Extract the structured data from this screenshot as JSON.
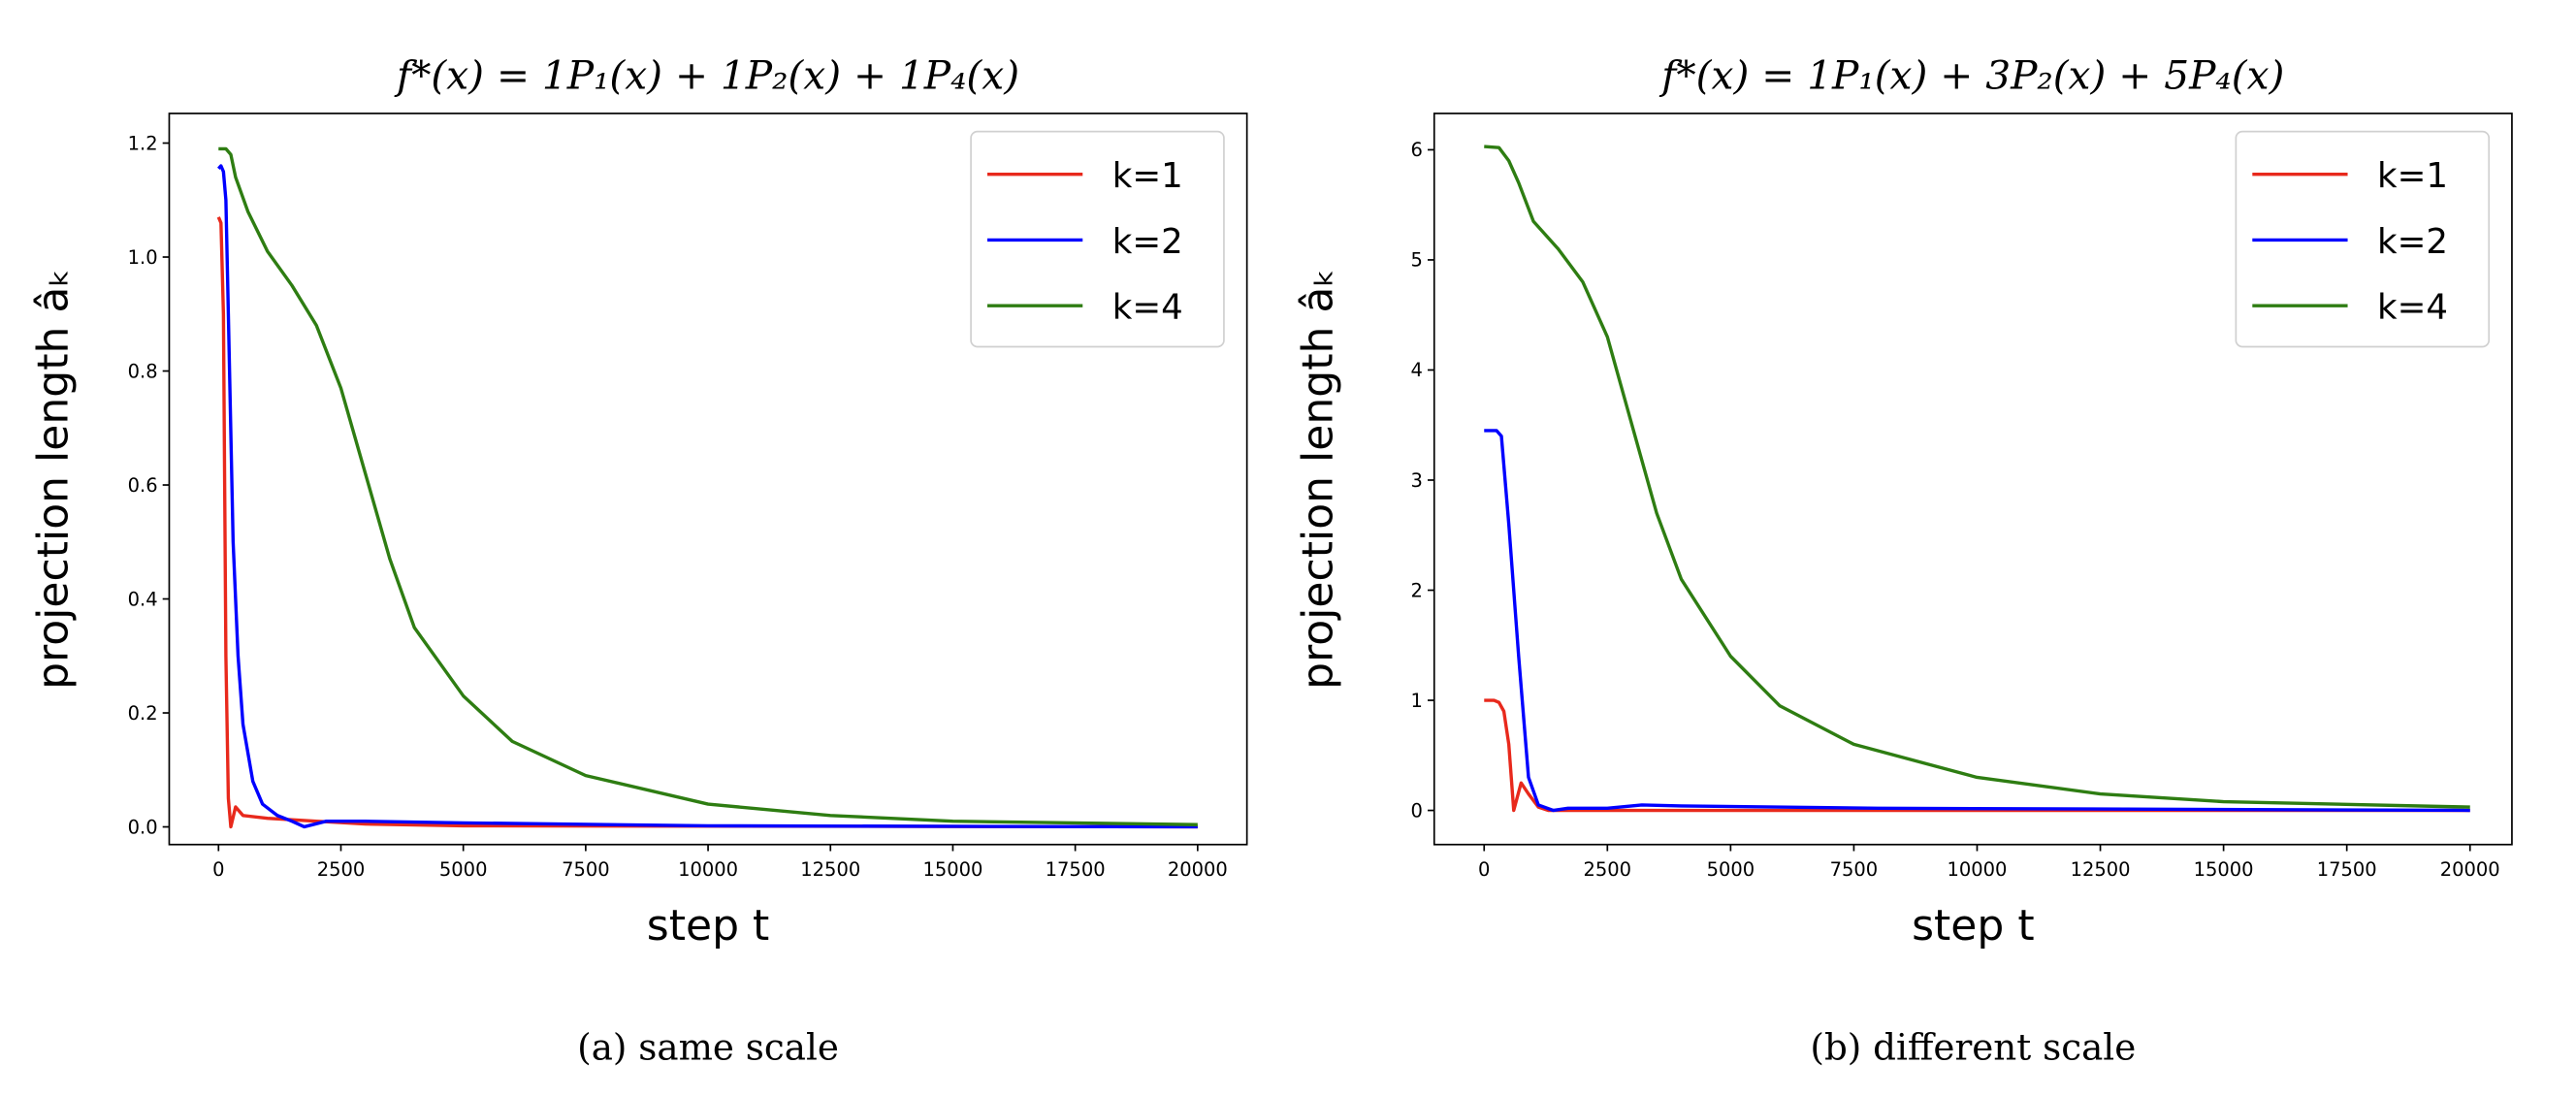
{
  "chart_data": [
    {
      "type": "line",
      "title": "f*(x) = 1P₁(x) + 1P₂(x) + 1P₄(x)",
      "caption": "(a) same scale",
      "xlabel": "step t",
      "ylabel": "projection length âₖ",
      "xlim": [
        -1007,
        21007
      ],
      "ylim": [
        -0.031,
        1.252
      ],
      "xticks": [
        0,
        2500,
        5000,
        7500,
        10000,
        12500,
        15000,
        17500,
        20000
      ],
      "yticks": [
        0.0,
        0.2,
        0.4,
        0.6,
        0.8,
        1.0,
        1.2
      ],
      "ytick_labels": [
        "0.0",
        "0.2",
        "0.4",
        "0.6",
        "0.8",
        "1.0",
        "1.2"
      ],
      "grid": false,
      "legend_position": "top-right",
      "series": [
        {
          "name": "k=1",
          "color": "#e8291c",
          "x": [
            0,
            50,
            100,
            150,
            200,
            250,
            350,
            500,
            1000,
            2000,
            3000,
            5000,
            20000
          ],
          "y": [
            1.07,
            1.06,
            0.9,
            0.3,
            0.05,
            0.0,
            0.035,
            0.02,
            0.015,
            0.01,
            0.005,
            0.002,
            0.0
          ]
        },
        {
          "name": "k=2",
          "color": "#0000ff",
          "x": [
            0,
            50,
            100,
            150,
            200,
            300,
            400,
            500,
            700,
            900,
            1200,
            1500,
            1750,
            2200,
            3000,
            5000,
            10000,
            20000
          ],
          "y": [
            1.155,
            1.16,
            1.15,
            1.1,
            0.9,
            0.5,
            0.3,
            0.18,
            0.08,
            0.04,
            0.02,
            0.01,
            0.0,
            0.01,
            0.01,
            0.007,
            0.002,
            0.0
          ]
        },
        {
          "name": "k=4",
          "color": "#2e7d12",
          "x": [
            0,
            150,
            250,
            350,
            600,
            1000,
            1500,
            2000,
            2500,
            3000,
            3500,
            4000,
            5000,
            6000,
            7500,
            10000,
            12500,
            15000,
            20000
          ],
          "y": [
            1.19,
            1.19,
            1.18,
            1.14,
            1.08,
            1.01,
            0.95,
            0.88,
            0.77,
            0.62,
            0.47,
            0.35,
            0.23,
            0.15,
            0.09,
            0.04,
            0.02,
            0.01,
            0.004
          ]
        }
      ]
    },
    {
      "type": "line",
      "title": "f*(x) = 1P₁(x) + 3P₂(x) + 5P₄(x)",
      "caption": "(b) different scale",
      "xlabel": "step t",
      "ylabel": "projection length âₖ",
      "xlim": [
        -1013,
        20850
      ],
      "ylim": [
        -0.31,
        6.33
      ],
      "xticks": [
        0,
        2500,
        5000,
        7500,
        10000,
        12500,
        15000,
        17500,
        20000
      ],
      "yticks": [
        0,
        1,
        2,
        3,
        4,
        5,
        6
      ],
      "ytick_labels": [
        "0",
        "1",
        "2",
        "3",
        "4",
        "5",
        "6"
      ],
      "grid": false,
      "legend_position": "top-right",
      "series": [
        {
          "name": "k=1",
          "color": "#e8291c",
          "x": [
            0,
            200,
            300,
            400,
            500,
            600,
            750,
            900,
            1100,
            1300,
            2000,
            20000
          ],
          "y": [
            1.0,
            1.0,
            0.98,
            0.9,
            0.6,
            0.0,
            0.25,
            0.15,
            0.03,
            0.0,
            0.0,
            0.0
          ]
        },
        {
          "name": "k=2",
          "color": "#0000ff",
          "x": [
            0,
            250,
            350,
            500,
            700,
            900,
            1100,
            1400,
            1700,
            2500,
            3200,
            4000,
            8000,
            20000
          ],
          "y": [
            3.45,
            3.45,
            3.4,
            2.6,
            1.4,
            0.3,
            0.05,
            0.0,
            0.02,
            0.02,
            0.05,
            0.04,
            0.02,
            0.0
          ]
        },
        {
          "name": "k=4",
          "color": "#2e7d12",
          "x": [
            0,
            300,
            500,
            700,
            1000,
            1500,
            2000,
            2500,
            3000,
            3500,
            4000,
            5000,
            6000,
            7500,
            10000,
            12500,
            15000,
            20000
          ],
          "y": [
            6.03,
            6.02,
            5.9,
            5.7,
            5.35,
            5.1,
            4.8,
            4.3,
            3.5,
            2.7,
            2.1,
            1.4,
            0.95,
            0.6,
            0.3,
            0.15,
            0.08,
            0.03
          ]
        }
      ]
    }
  ]
}
